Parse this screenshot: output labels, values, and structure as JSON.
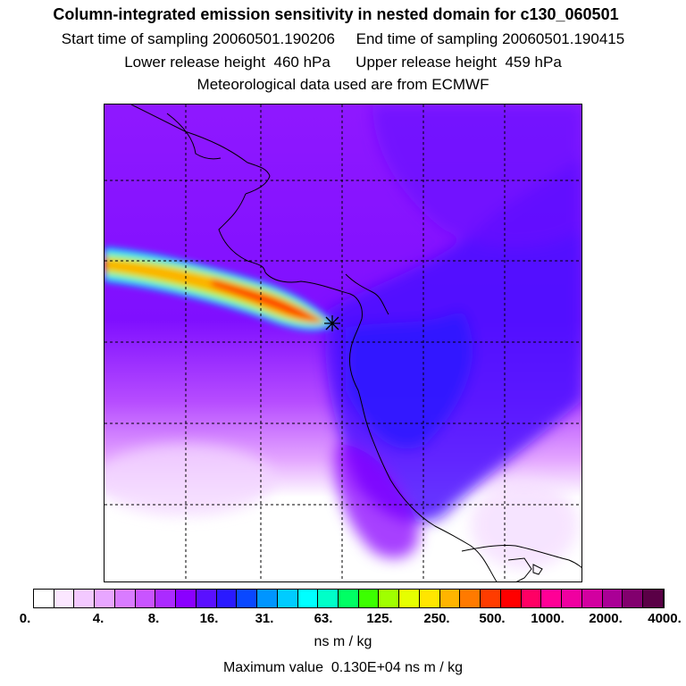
{
  "header": {
    "title": "Column-integrated emission sensitivity in nested domain for c130_060501",
    "start_label": "Start time of sampling 20060501.190206",
    "end_label": "End time of sampling 20060501.190415",
    "lower_label": "Lower release height  460 hPa",
    "upper_label": "Upper release height  459 hPa",
    "met_label": "Meteorological data used are from ECMWF"
  },
  "colorbar": {
    "colors": [
      "#ffffff",
      "#fbe7ff",
      "#f3c9ff",
      "#e8a6ff",
      "#d97bff",
      "#c954ff",
      "#ab2bff",
      "#8a00ff",
      "#5a10ff",
      "#2a1aff",
      "#0a48ff",
      "#0095ff",
      "#00ccff",
      "#00ffff",
      "#00ffc8",
      "#00ff64",
      "#3cff00",
      "#a0ff00",
      "#e6ff00",
      "#ffe600",
      "#ffb400",
      "#ff7a00",
      "#ff3c00",
      "#ff0000",
      "#ff0064",
      "#ff0096",
      "#f000a0",
      "#d200a0",
      "#aa0096",
      "#82006e",
      "#5a0046"
    ],
    "labels": [
      "0.",
      "4.",
      "8.",
      "16.",
      "31.",
      "63.",
      "125.",
      "250.",
      "500.",
      "1000.",
      "2000.",
      "4000."
    ],
    "unit": "ns m / kg",
    "max_value_text": "Maximum value  0.130E+04 ns m / kg"
  }
}
